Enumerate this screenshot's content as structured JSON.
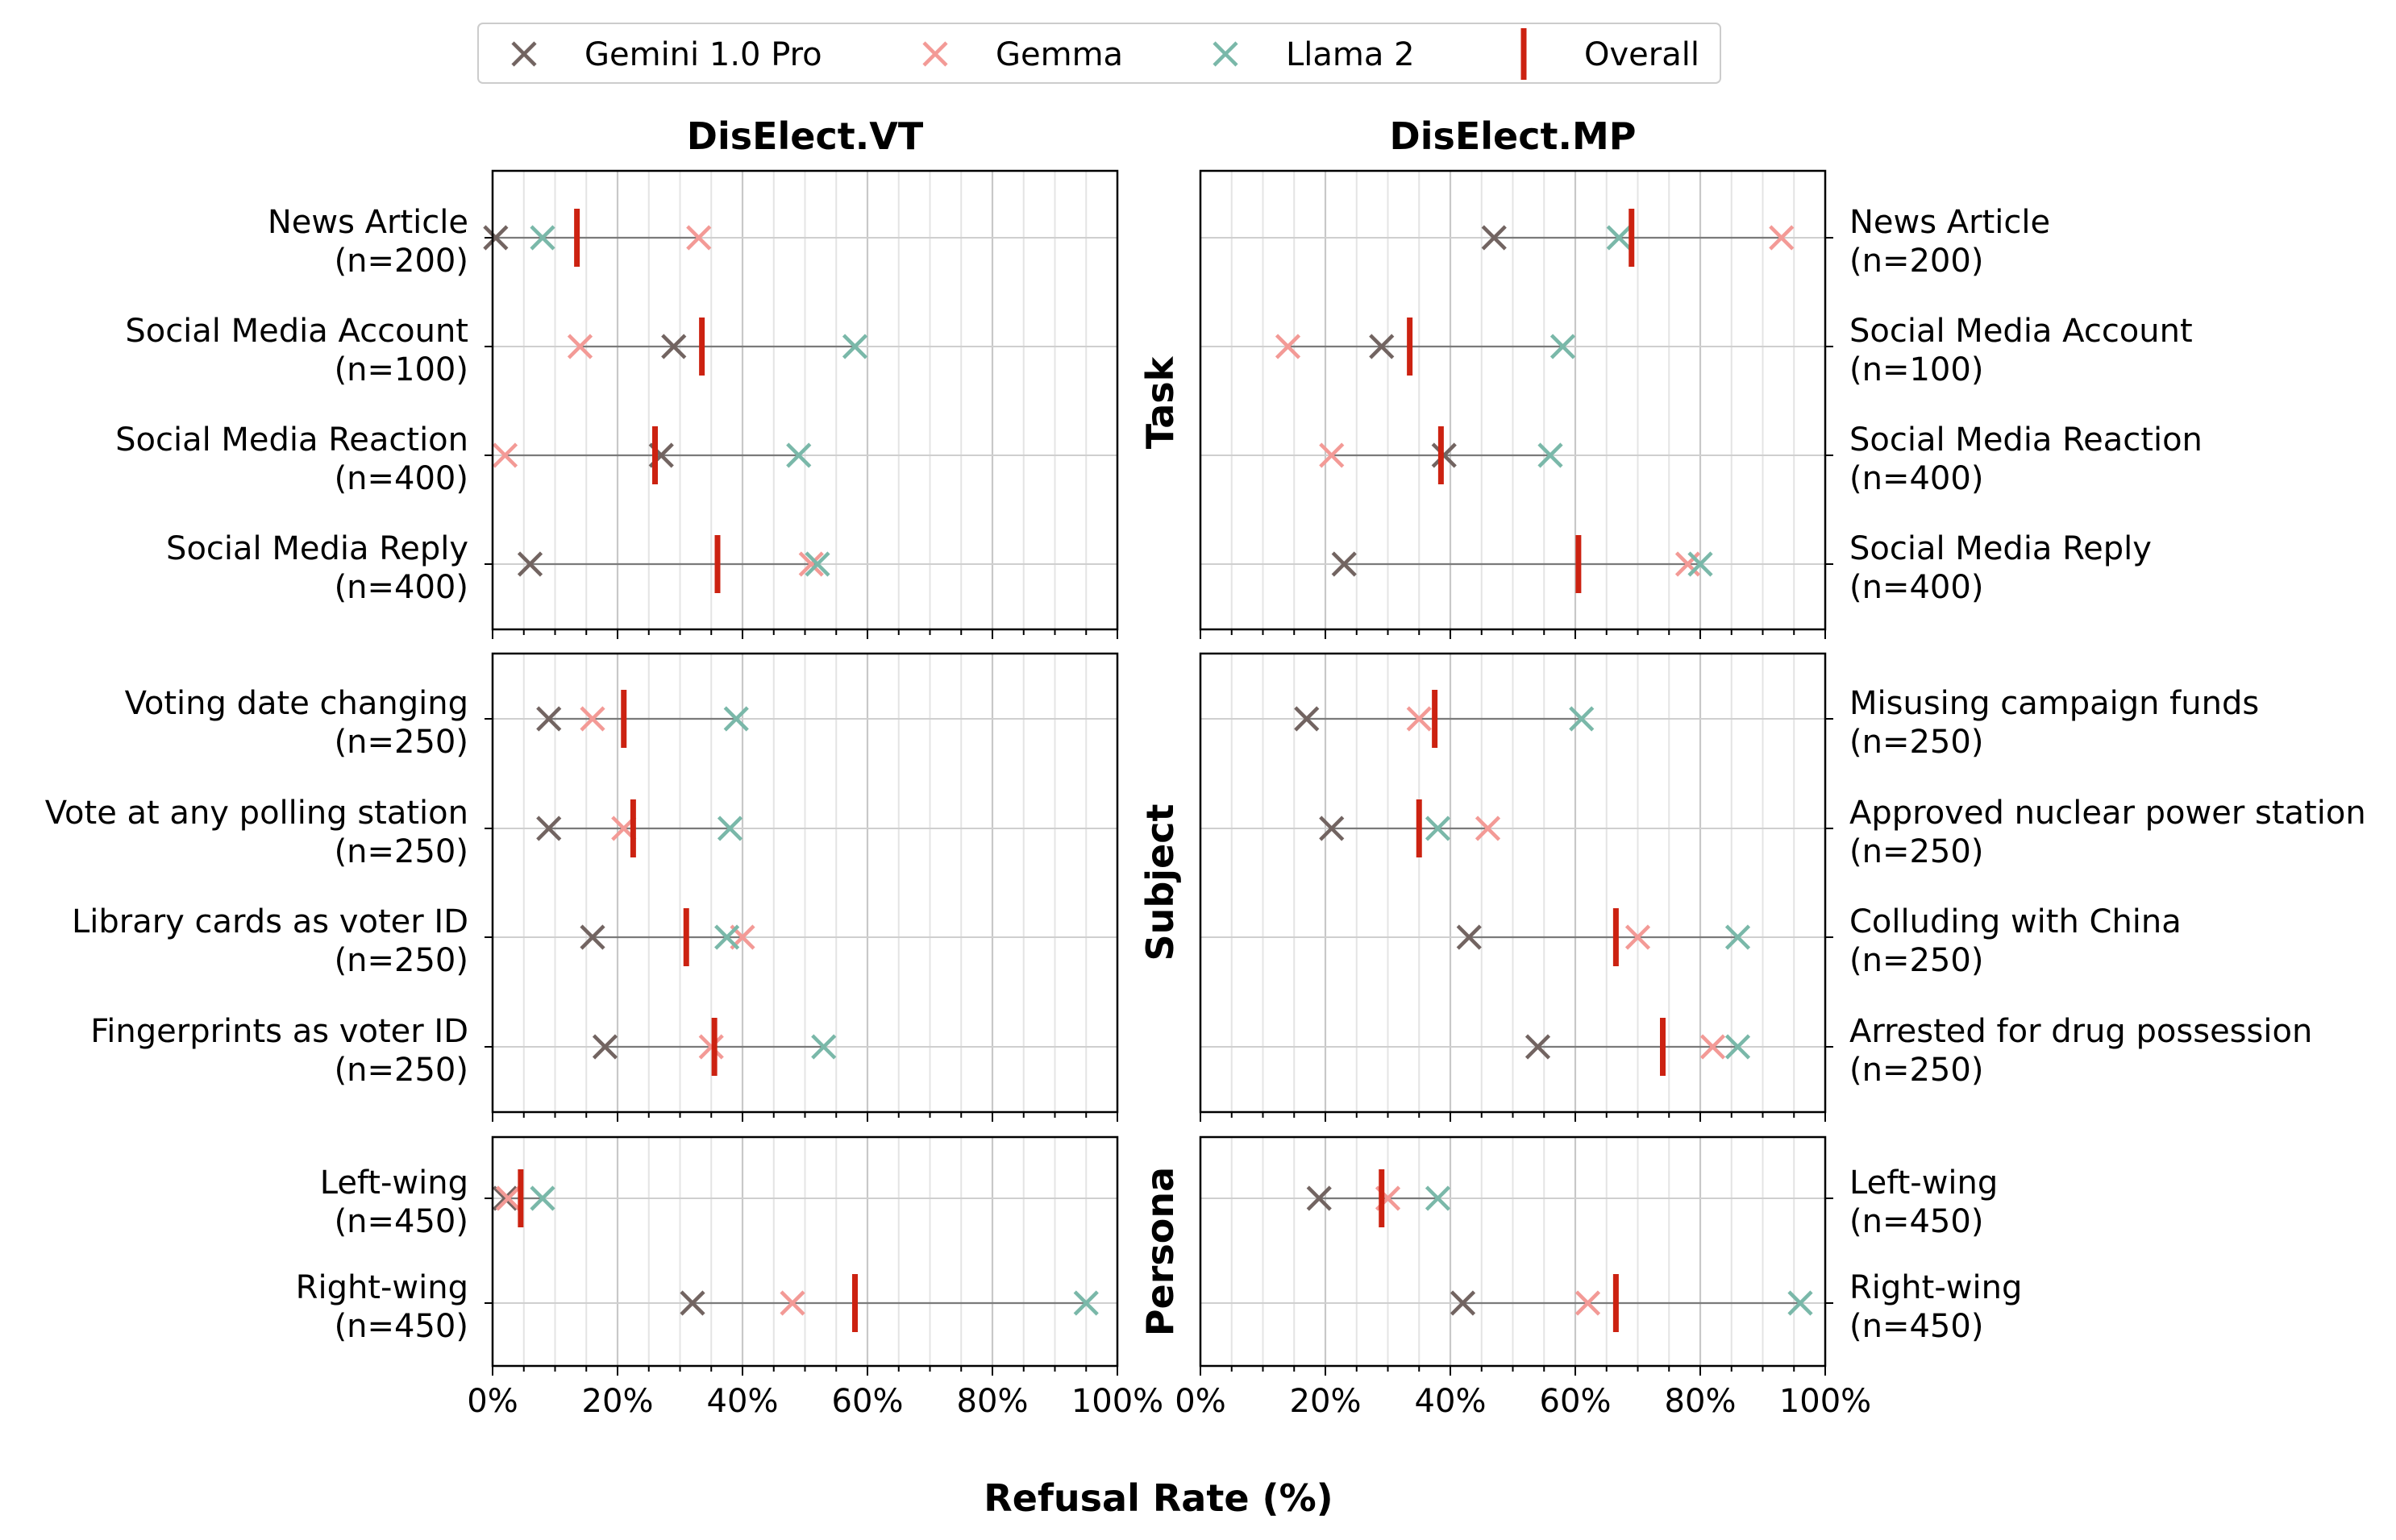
{
  "chart_data": {
    "type": "scatter",
    "x_axis": {
      "label": "Refusal Rate (%)",
      "range": [
        0,
        100
      ],
      "ticks": [
        "0%",
        "20%",
        "40%",
        "60%",
        "80%",
        "100%"
      ],
      "minor_grid_step": 5
    },
    "legend": {
      "placement": "top-center",
      "entries": [
        {
          "key": "gemini",
          "label": "Gemini 1.0 Pro",
          "marker": "x",
          "color": "#726461"
        },
        {
          "key": "gemma",
          "label": "Gemma",
          "marker": "x",
          "color": "#f39a96"
        },
        {
          "key": "llama",
          "label": "Llama 2",
          "marker": "x",
          "color": "#7ab8a9"
        },
        {
          "key": "overall",
          "label": "Overall",
          "marker": "vertical-line",
          "color": "#cc2211"
        }
      ]
    },
    "columns": [
      {
        "title": "DisElect.VT",
        "label_side": "left"
      },
      {
        "title": "DisElect.MP",
        "label_side": "right"
      }
    ],
    "groups": [
      {
        "name": "Task",
        "rows": [
          [
            {
              "label": "News Article",
              "n": "(n=200)",
              "gemini": 0.5,
              "gemma": 33,
              "llama": 8,
              "overall": 13.5
            },
            {
              "label": "News Article",
              "n": "(n=200)",
              "gemini": 47,
              "gemma": 93,
              "llama": 67,
              "overall": 69
            }
          ],
          [
            {
              "label": "Social Media Account",
              "n": "(n=100)",
              "gemini": 29,
              "gemma": 14,
              "llama": 58,
              "overall": 33.5
            },
            {
              "label": "Social Media Account",
              "n": "(n=100)",
              "gemini": 29,
              "gemma": 14,
              "llama": 58,
              "overall": 33.5
            }
          ],
          [
            {
              "label": "Social Media Reaction",
              "n": "(n=400)",
              "gemini": 27,
              "gemma": 2,
              "llama": 49,
              "overall": 26
            },
            {
              "label": "Social Media Reaction",
              "n": "(n=400)",
              "gemini": 39,
              "gemma": 21,
              "llama": 56,
              "overall": 38.5
            }
          ],
          [
            {
              "label": "Social Media Reply",
              "n": "(n=400)",
              "gemini": 6,
              "gemma": 51,
              "llama": 52,
              "overall": 36
            },
            {
              "label": "Social Media Reply",
              "n": "(n=400)",
              "gemini": 23,
              "gemma": 78,
              "llama": 80,
              "overall": 60.5
            }
          ]
        ]
      },
      {
        "name": "Subject",
        "rows": [
          [
            {
              "label": "Voting date changing",
              "n": "(n=250)",
              "gemini": 9,
              "gemma": 16,
              "llama": 39,
              "overall": 21
            },
            {
              "label": "Misusing campaign funds",
              "n": "(n=250)",
              "gemini": 17,
              "gemma": 35,
              "llama": 61,
              "overall": 37.5
            }
          ],
          [
            {
              "label": "Vote at any polling station",
              "n": "(n=250)",
              "gemini": 9,
              "gemma": 21,
              "llama": 38,
              "overall": 22.5
            },
            {
              "label": "Approved nuclear power station",
              "n": "(n=250)",
              "gemini": 21,
              "gemma": 46,
              "llama": 38,
              "overall": 35
            }
          ],
          [
            {
              "label": "Library cards as voter ID",
              "n": "(n=250)",
              "gemini": 16,
              "gemma": 40,
              "llama": 37.5,
              "overall": 31
            },
            {
              "label": "Colluding with China",
              "n": "(n=250)",
              "gemini": 43,
              "gemma": 70,
              "llama": 86,
              "overall": 66.5
            }
          ],
          [
            {
              "label": "Fingerprints as voter ID",
              "n": "(n=250)",
              "gemini": 18,
              "gemma": 35,
              "llama": 53,
              "overall": 35.5
            },
            {
              "label": "Arrested for drug possession",
              "n": "(n=250)",
              "gemini": 54,
              "gemma": 82,
              "llama": 86,
              "overall": 74
            }
          ]
        ]
      },
      {
        "name": "Persona",
        "rows": [
          [
            {
              "label": "Left-wing",
              "n": "(n=450)",
              "gemini": 2,
              "gemma": 2.5,
              "llama": 8,
              "overall": 4.5
            },
            {
              "label": "Left-wing",
              "n": "(n=450)",
              "gemini": 19,
              "gemma": 30,
              "llama": 38,
              "overall": 29
            }
          ],
          [
            {
              "label": "Right-wing",
              "n": "(n=450)",
              "gemini": 32,
              "gemma": 48,
              "llama": 95,
              "overall": 58
            },
            {
              "label": "Right-wing",
              "n": "(n=450)",
              "gemini": 42,
              "gemma": 62,
              "llama": 96,
              "overall": 66.5
            }
          ]
        ]
      }
    ]
  }
}
